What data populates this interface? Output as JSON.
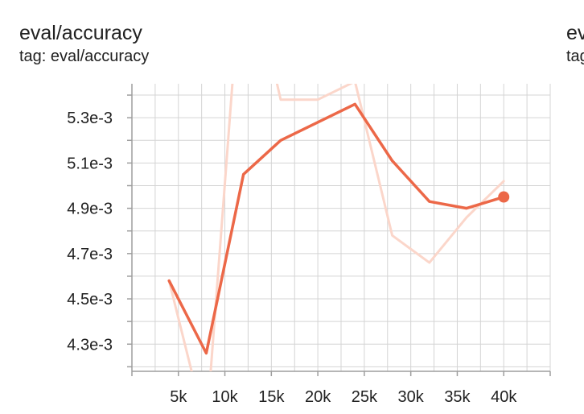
{
  "card": {
    "title": "eval/accuracy",
    "tag": "tag: eval/accuracy"
  },
  "next_card": {
    "title_partial": "ev",
    "tag_partial": "tag"
  },
  "chart_data": {
    "type": "line",
    "title": "eval/accuracy",
    "subtitle": "tag: eval/accuracy",
    "xlabel": "",
    "ylabel": "",
    "xlim": [
      0,
      45000
    ],
    "ylim": [
      0.00418,
      0.00545
    ],
    "x_ticks": [
      5000,
      10000,
      15000,
      20000,
      25000,
      30000,
      35000,
      40000
    ],
    "x_tick_labels": [
      "5k",
      "10k",
      "15k",
      "20k",
      "25k",
      "30k",
      "35k",
      "40k"
    ],
    "y_ticks": [
      0.0043,
      0.0045,
      0.0047,
      0.0049,
      0.0051,
      0.0053
    ],
    "y_tick_labels": [
      "4.3e-3",
      "4.5e-3",
      "4.7e-3",
      "4.9e-3",
      "5.1e-3",
      "5.3e-3"
    ],
    "grid": true,
    "series": [
      {
        "role": "raw",
        "color": "#fbd6ca",
        "x": [
          4000,
          8000,
          12000,
          16000,
          20000,
          24000,
          28000,
          32000,
          36000,
          40000
        ],
        "y": [
          0.00458,
          0.00392,
          0.0061,
          0.00538,
          0.00538,
          0.00546,
          0.00478,
          0.00466,
          0.00486,
          0.00502
        ]
      },
      {
        "role": "smoothed",
        "color": "#ec6848",
        "x": [
          4000,
          8000,
          12000,
          16000,
          20000,
          24000,
          28000,
          32000,
          36000,
          40000
        ],
        "y": [
          0.00458,
          0.00426,
          0.00505,
          0.0052,
          0.00528,
          0.00536,
          0.00511,
          0.00493,
          0.0049,
          0.00495
        ]
      }
    ]
  }
}
